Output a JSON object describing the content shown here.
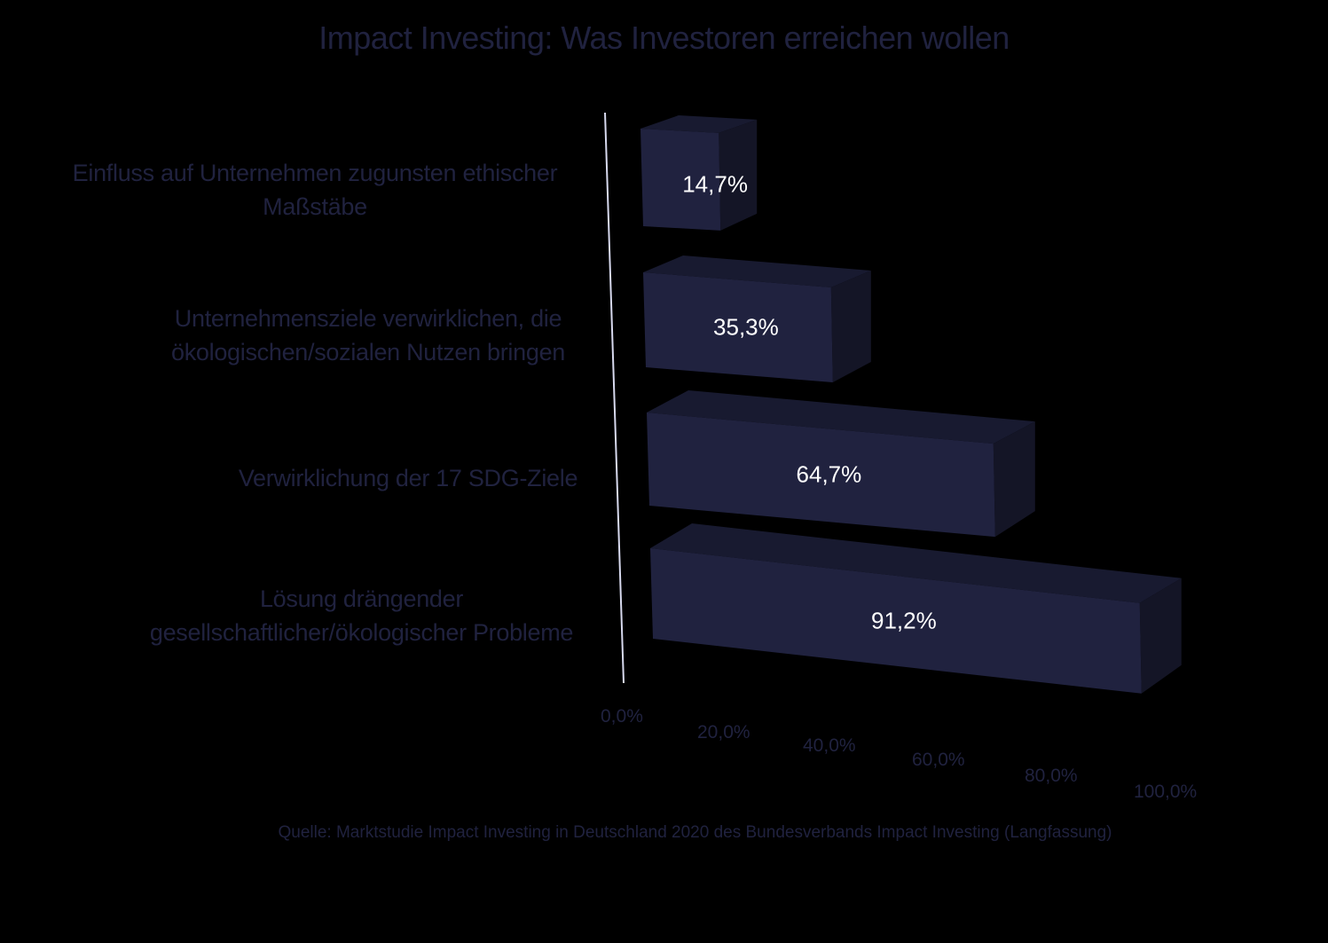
{
  "chart_data": {
    "type": "bar",
    "orientation": "horizontal",
    "style": "3d",
    "title": "Impact Investing: Was Investoren erreichen wollen",
    "categories": [
      "Einfluss auf Unternehmen zugunsten ethischer Maßstäbe",
      "Unternehmensziele verwirklichen, die ökologischen/sozialen Nutzen bringen",
      "Verwirklichung der 17 SDG-Ziele",
      "Lösung drängender gesellschaftlicher/ökologischer Probleme"
    ],
    "values": [
      14.7,
      35.3,
      64.7,
      91.2
    ],
    "value_labels": [
      "14,7%",
      "35,3%",
      "64,7%",
      "91,2%"
    ],
    "xlabel": "",
    "ylabel": "",
    "xlim": [
      0,
      100
    ],
    "x_ticks": [
      "0,0%",
      "20,0%",
      "40,0%",
      "60,0%",
      "80,0%",
      "100,0%"
    ],
    "grid": false,
    "legend": null,
    "source": "Quelle: Marktstudie Impact Investing in Deutschland 2020 des Bundesverbands Impact Investing (Langfassung)"
  },
  "labels": {
    "cat0_line1": "Einfluss auf Unternehmen zugunsten ethischer",
    "cat0_line2": "Maßstäbe",
    "cat1_line1": "Unternehmensziele verwirklichen, die",
    "cat1_line2": "ökologischen/sozialen Nutzen bringen",
    "cat2_line1": "Verwirklichung der 17 SDG-Ziele",
    "cat3_line1": "Lösung drängender",
    "cat3_line2": "gesellschaftlicher/ökologischer Probleme"
  },
  "colors": {
    "background": "#000000",
    "bar_front": "#20223f",
    "bar_top": "#181a30",
    "bar_side": "#141526",
    "axis_line": "#d7d9ee",
    "text": "#20223f",
    "value_text": "#ffffff"
  }
}
